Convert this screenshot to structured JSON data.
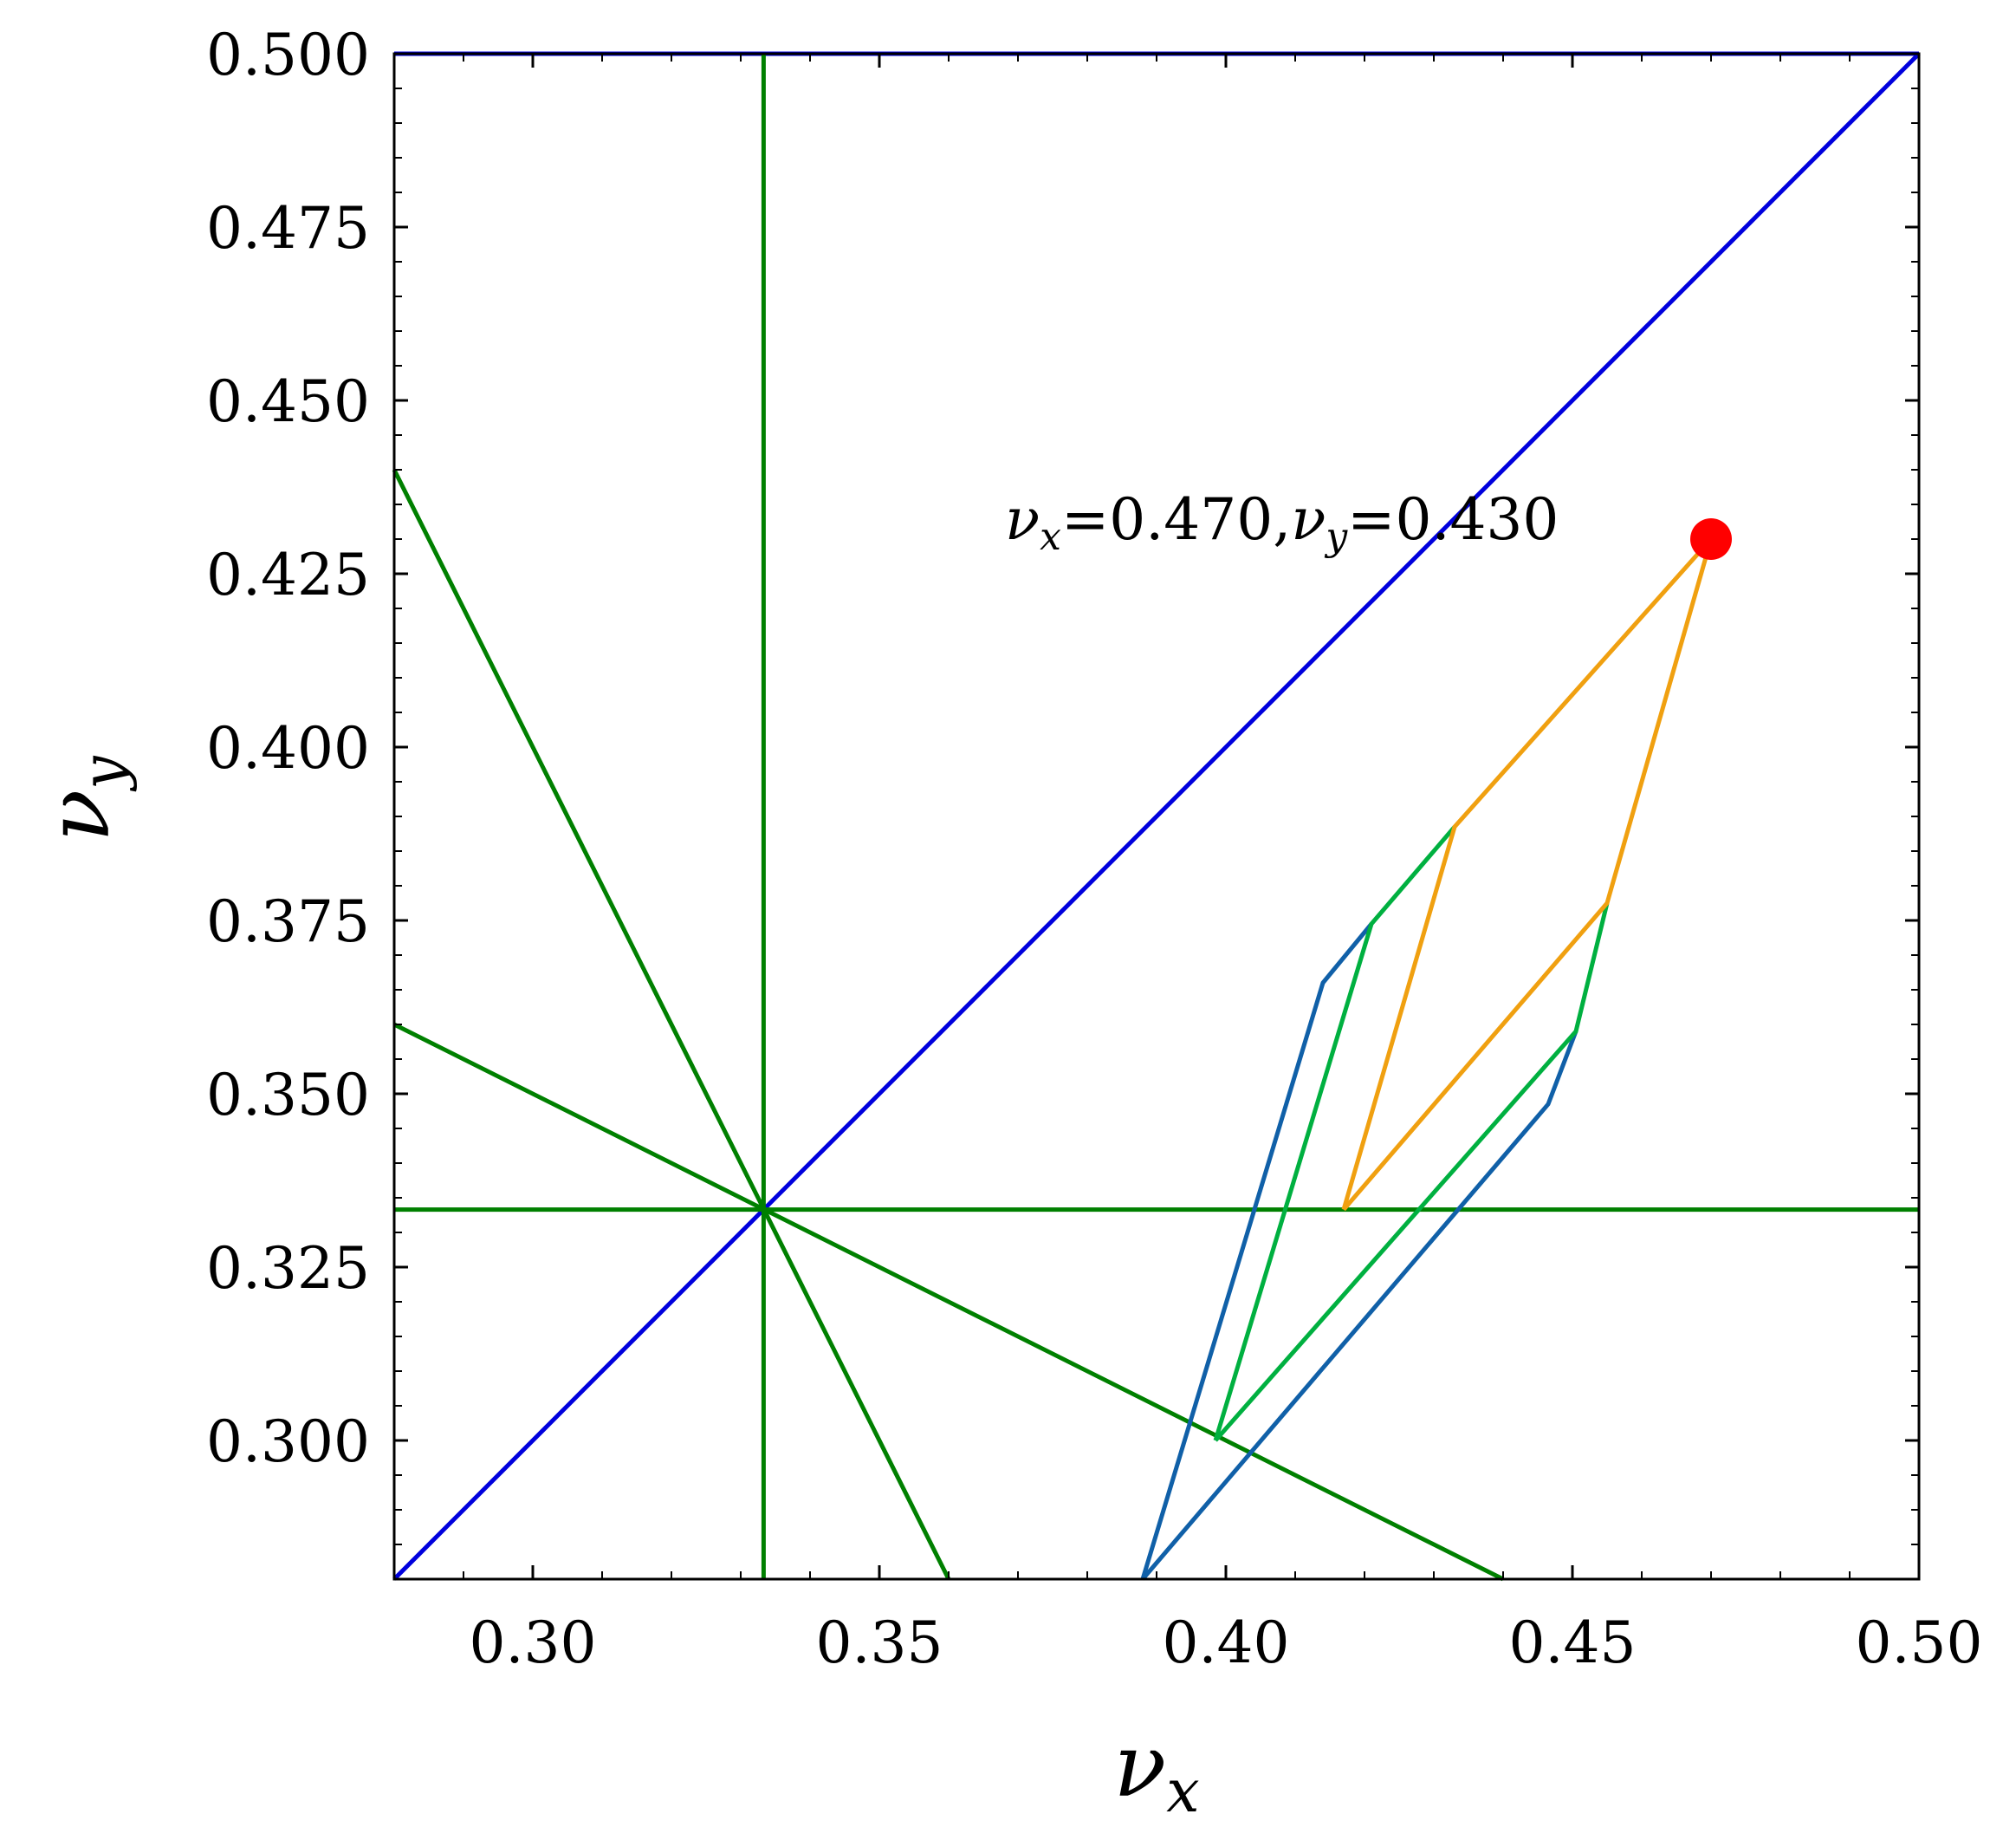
{
  "chart_data": {
    "type": "line",
    "xlabel": "ν",
    "xlabel_sub": "x",
    "ylabel": "ν",
    "ylabel_sub": "y",
    "xlim": [
      0.28,
      0.5
    ],
    "ylim": [
      0.28,
      0.5
    ],
    "x_ticks": [
      0.3,
      0.35,
      0.4,
      0.45,
      0.5
    ],
    "x_tick_labels": [
      "0.30",
      "0.35",
      "0.40",
      "0.45",
      "0.50"
    ],
    "y_ticks": [
      0.3,
      0.325,
      0.35,
      0.375,
      0.4,
      0.425,
      0.45,
      0.475,
      0.5
    ],
    "y_tick_labels": [
      "0.300",
      "0.325",
      "0.350",
      "0.375",
      "0.400",
      "0.425",
      "0.450",
      "0.475",
      "0.500"
    ],
    "grid": false,
    "series": [
      {
        "color": "#0000dd",
        "x": [
          0.28,
          0.5
        ],
        "y": [
          0.28,
          0.5
        ]
      },
      {
        "color": "#0000dd",
        "x": [
          0.28,
          0.5
        ],
        "y": [
          0.5,
          0.5
        ]
      },
      {
        "color": "#008000",
        "x": [
          0.3333,
          0.3333
        ],
        "y": [
          0.28,
          0.5
        ]
      },
      {
        "color": "#008000",
        "x": [
          0.28,
          0.5
        ],
        "y": [
          0.3333,
          0.3333
        ]
      },
      {
        "color": "#008000",
        "x": [
          0.28,
          0.36
        ],
        "y": [
          0.44,
          0.28
        ]
      },
      {
        "color": "#008000",
        "x": [
          0.28,
          0.44
        ],
        "y": [
          0.36,
          0.28
        ]
      },
      {
        "color": "#1060a8",
        "x": [
          0.388,
          0.414,
          0.421
        ],
        "y": [
          0.28,
          0.366,
          0.3745
        ]
      },
      {
        "color": "#1060a8",
        "x": [
          0.388,
          0.4465,
          0.4505
        ],
        "y": [
          0.28,
          0.3485,
          0.359
        ]
      },
      {
        "color": "#00b040",
        "x": [
          0.3985,
          0.421,
          0.433
        ],
        "y": [
          0.3,
          0.3745,
          0.3885
        ]
      },
      {
        "color": "#00b040",
        "x": [
          0.3985,
          0.4505,
          0.455
        ],
        "y": [
          0.3,
          0.359,
          0.3775
        ]
      },
      {
        "color": "#f0a010",
        "x": [
          0.417,
          0.433,
          0.47
        ],
        "y": [
          0.3333,
          0.3885,
          0.43
        ]
      },
      {
        "color": "#f0a010",
        "x": [
          0.417,
          0.455,
          0.47
        ],
        "y": [
          0.3333,
          0.3775,
          0.43
        ]
      }
    ],
    "point": {
      "x": 0.47,
      "y": 0.43,
      "color": "#ff0000"
    },
    "annotation": {
      "nu": "ν",
      "x_sub": "x",
      "x_value": "=0.470,",
      "y_sub": "y",
      "y_value": "=0.430"
    }
  }
}
